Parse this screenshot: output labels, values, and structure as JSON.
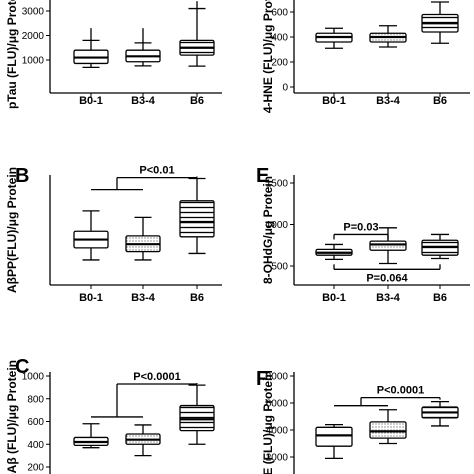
{
  "chart_data": [
    {
      "type": "box",
      "panel_label": "",
      "ylabel": "pTau (FLU)/μg Protein",
      "categories": [
        "B0-1",
        "B3-4",
        "B6"
      ],
      "yticks": [
        1000,
        2000,
        3000
      ],
      "ylim": [
        0,
        3500
      ],
      "fills": [
        "none",
        "none",
        "hstripes"
      ],
      "boxes": [
        {
          "min": 700,
          "q1": 860,
          "median": 1100,
          "q3": 1400,
          "max": 1800,
          "outlier": 2300
        },
        {
          "min": 760,
          "q1": 930,
          "median": 1150,
          "q3": 1400,
          "max": 1700,
          "outlier": 2300
        },
        {
          "min": 750,
          "q1": 1200,
          "median": 1500,
          "q3": 1800,
          "max": 3100,
          "outlier": 3400
        }
      ],
      "annotations": []
    },
    {
      "type": "box",
      "panel_label": "",
      "ylabel": "4-HNE (FLU)/μg Protein",
      "categories": [
        "B0-1",
        "B3-4",
        "B6"
      ],
      "yticks": [
        0,
        200,
        400,
        600
      ],
      "ylim": [
        0,
        700
      ],
      "fills": [
        "none",
        "dots",
        "hstripes"
      ],
      "boxes": [
        {
          "min": 310,
          "q1": 360,
          "median": 400,
          "q3": 430,
          "max": 470
        },
        {
          "min": 320,
          "q1": 360,
          "median": 400,
          "q3": 430,
          "max": 490
        },
        {
          "min": 350,
          "q1": 440,
          "median": 510,
          "q3": 580,
          "max": 680
        }
      ],
      "annotations": []
    },
    {
      "type": "box",
      "panel_label": "B",
      "ylabel": "AβPP(FLU)/μg Protein",
      "categories": [
        "B0-1",
        "B3-4",
        "B6"
      ],
      "yticks": [],
      "ylim": [
        0,
        1400
      ],
      "fills": [
        "none",
        "dots",
        "hstripes"
      ],
      "boxes": [
        {
          "min": 390,
          "q1": 520,
          "median": 610,
          "q3": 700,
          "max": 920
        },
        {
          "min": 390,
          "q1": 480,
          "median": 560,
          "q3": 650,
          "max": 850
        },
        {
          "min": 460,
          "q1": 640,
          "median": 800,
          "q3": 1030,
          "max": 1270
        }
      ],
      "annotations": [
        {
          "text": "P<0.01",
          "from": 0,
          "to": 2,
          "type": "bracket-join",
          "y": 1150,
          "ytop": 1280
        }
      ]
    },
    {
      "type": "box",
      "panel_label": "E",
      "ylabel": "8-OHdG/μg Protein",
      "categories": [
        "B0-1",
        "B3-4",
        "B6"
      ],
      "yticks": [
        500,
        1000,
        1500
      ],
      "ylim": [
        300,
        1500
      ],
      "fills": [
        "none",
        "dots",
        "hstripes"
      ],
      "boxes": [
        {
          "min": 580,
          "q1": 630,
          "median": 660,
          "q3": 700,
          "max": 760
        },
        {
          "min": 530,
          "q1": 690,
          "median": 760,
          "q3": 800,
          "max": 960
        },
        {
          "min": 590,
          "q1": 630,
          "median": 730,
          "q3": 810,
          "max": 880
        }
      ],
      "annotations": [
        {
          "text": "P=0.03",
          "from": 0,
          "to": 1,
          "type": "bar-above",
          "y": 880
        },
        {
          "text": "P=0.064",
          "from": 0,
          "to": 2,
          "type": "bar-below",
          "y": 460
        }
      ]
    },
    {
      "type": "box",
      "panel_label": "C",
      "ylabel": "A-Aβ (FLU)/μg Protein",
      "categories": [
        "B0-1",
        "B3-4",
        "B6"
      ],
      "yticks": [
        200,
        400,
        600,
        800,
        1000
      ],
      "ylim": [
        150,
        1000
      ],
      "fills": [
        "none",
        "dots",
        "hstripes"
      ],
      "boxes": [
        {
          "min": 370,
          "q1": 390,
          "median": 420,
          "q3": 460,
          "max": 580
        },
        {
          "min": 300,
          "q1": 400,
          "median": 440,
          "q3": 490,
          "max": 570
        },
        {
          "min": 400,
          "q1": 520,
          "median": 620,
          "q3": 740,
          "max": 920
        }
      ],
      "annotations": [
        {
          "text": "P<0.0001",
          "from": 0,
          "to": 2,
          "type": "bracket-join",
          "y": 640,
          "ytop": 930
        }
      ]
    },
    {
      "type": "box",
      "panel_label": "F",
      "ylabel": "E (FLU)/μg Protein",
      "categories": [
        "B0-1",
        "B3-4",
        "B6"
      ],
      "yticks": [
        2000,
        4000,
        6000,
        8000
      ],
      "ylim": [
        1200,
        8000
      ],
      "fills": [
        "none",
        "dots",
        "hstripes"
      ],
      "boxes": [
        {
          "min": 1900,
          "q1": 2800,
          "median": 3600,
          "q3": 4200,
          "max": 4400
        },
        {
          "min": 3000,
          "q1": 3400,
          "median": 3900,
          "q3": 4600,
          "max": 5500
        },
        {
          "min": 4300,
          "q1": 4900,
          "median": 5300,
          "q3": 5700,
          "max": 6100
        }
      ],
      "annotations": [
        {
          "text": "P<0.0001",
          "from": 0,
          "to": 2,
          "type": "bracket-join",
          "y": 5800,
          "ytop": 6400
        }
      ]
    }
  ]
}
